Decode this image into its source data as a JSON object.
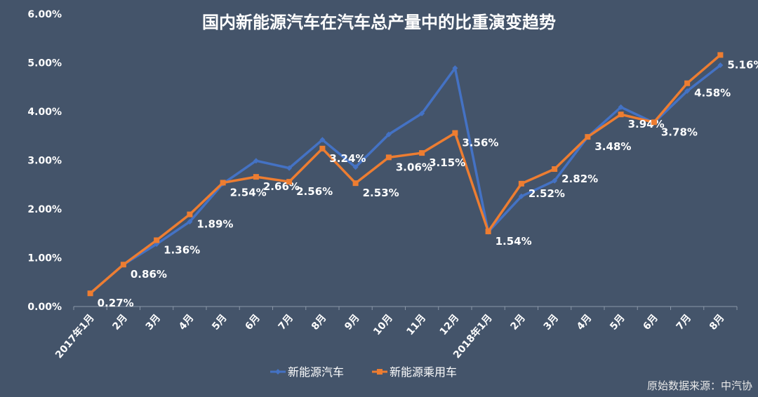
{
  "chart_data": {
    "type": "line",
    "title": "国内新能源汽车在汽车总产量中的比重演变趋势",
    "xlabel": "",
    "ylabel": "",
    "ylim": [
      0,
      6
    ],
    "yticks": [
      "0.00%",
      "1.00%",
      "2.00%",
      "3.00%",
      "4.00%",
      "5.00%",
      "6.00%"
    ],
    "grid": false,
    "legend_position": "bottom",
    "categories": [
      "2017年1月",
      "2月",
      "3月",
      "4月",
      "5月",
      "6月",
      "7月",
      "8月",
      "9月",
      "10月",
      "11月",
      "12月",
      "2018年1月",
      "2月",
      "3月",
      "4月",
      "5月",
      "6月",
      "7月",
      "8月"
    ],
    "series": [
      {
        "name": "新能源汽车",
        "color": "#4472c4",
        "marker": "diamond",
        "values": [
          0.27,
          0.86,
          1.28,
          1.74,
          2.52,
          2.99,
          2.84,
          3.42,
          2.86,
          3.53,
          3.96,
          4.89,
          1.53,
          2.26,
          2.58,
          3.48,
          4.09,
          3.77,
          4.42,
          4.95
        ]
      },
      {
        "name": "新能源乘用车",
        "color": "#ed7d31",
        "marker": "square",
        "values": [
          0.27,
          0.86,
          1.36,
          1.89,
          2.54,
          2.66,
          2.56,
          3.24,
          2.53,
          3.06,
          3.15,
          3.56,
          1.54,
          2.52,
          2.82,
          3.48,
          3.94,
          3.78,
          4.58,
          5.16
        ],
        "data_labels": [
          "0.27%",
          "0.86%",
          "1.36%",
          "1.89%",
          "2.54%",
          "2.66%",
          "2.56%",
          "3.24%",
          "2.53%",
          "3.06%",
          "3.15%",
          "3.56%",
          "1.54%",
          "2.52%",
          "2.82%",
          "3.48%",
          "3.94%",
          "3.78%",
          "4.58%",
          "5.16%"
        ]
      }
    ]
  },
  "source_note": "原始数据来源：中汽协"
}
